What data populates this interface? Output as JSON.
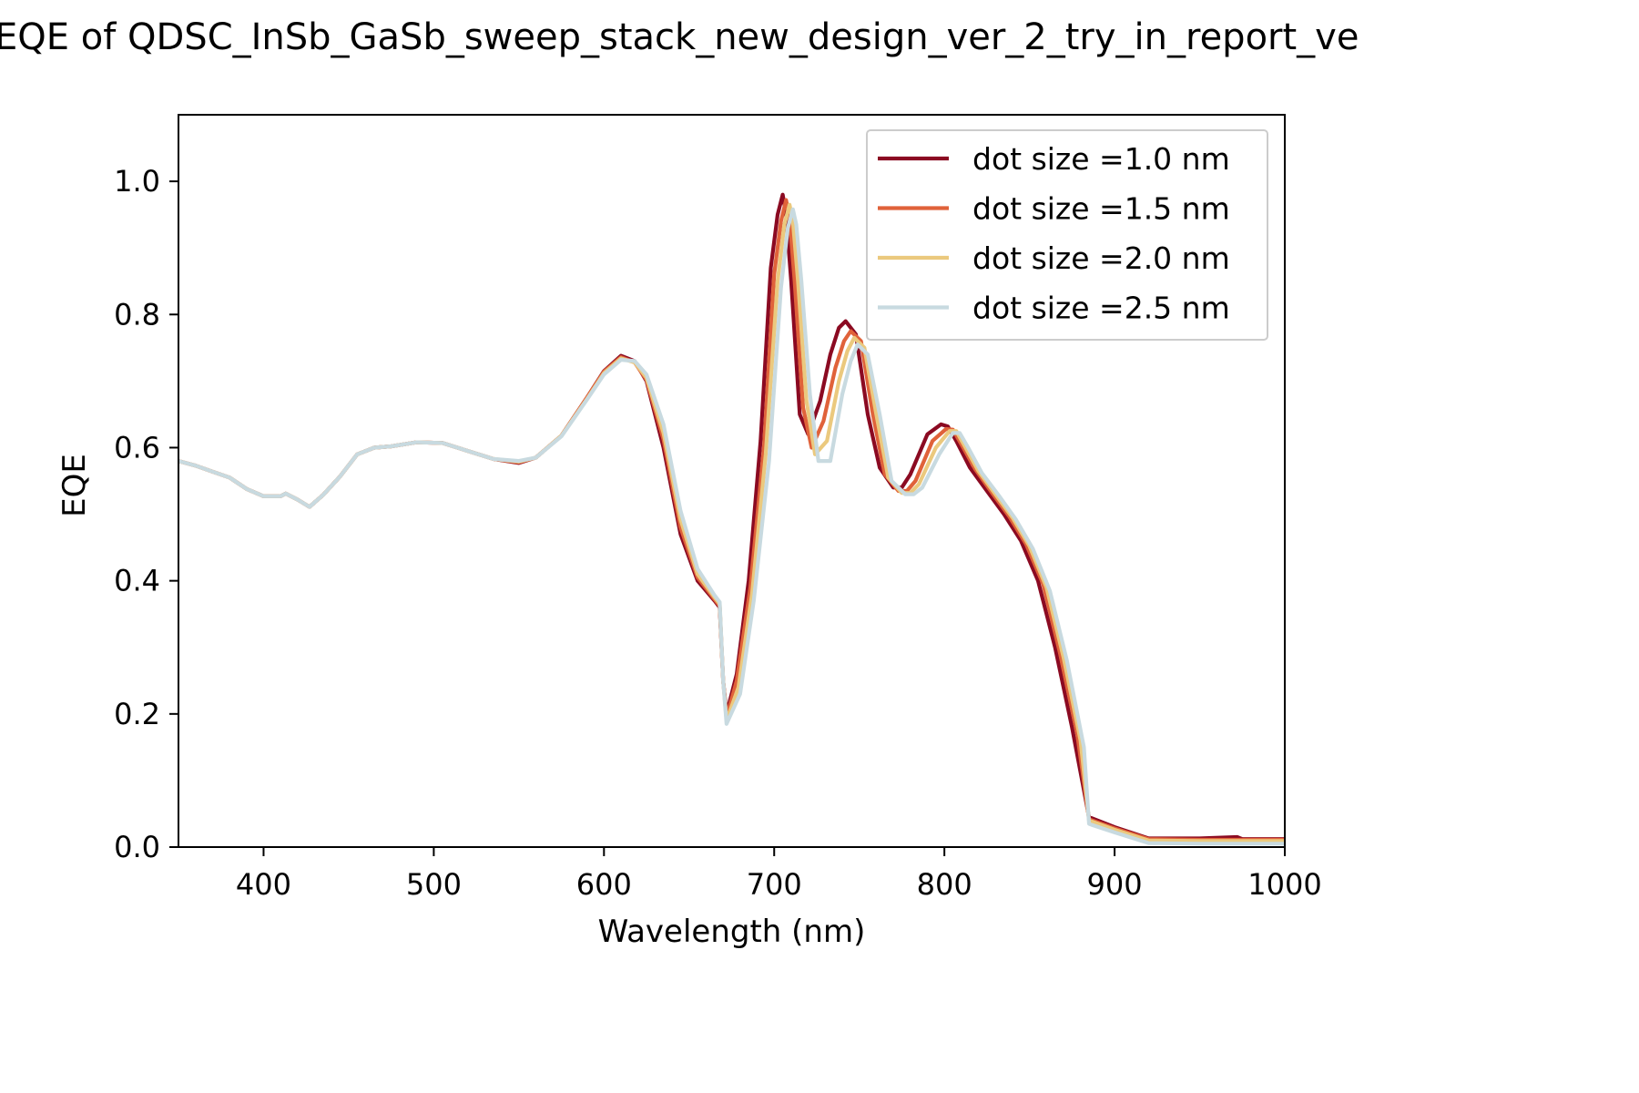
{
  "chart_data": {
    "type": "line",
    "title": "EQE of  QDSC_InSb_GaSb_sweep_stack_new_design_ver_2_try_in_report_ve",
    "xlabel": "Wavelength (nm)",
    "ylabel": "EQE",
    "xlim": [
      350,
      1000
    ],
    "ylim": [
      0,
      1.1
    ],
    "xticks": [
      400,
      500,
      600,
      700,
      800,
      900,
      1000
    ],
    "yticks": [
      0.0,
      0.2,
      0.4,
      0.6,
      0.8,
      1.0
    ],
    "xtick_labels": [
      "400",
      "500",
      "600",
      "700",
      "800",
      "900",
      "1000"
    ],
    "ytick_labels": [
      "0.0",
      "0.2",
      "0.4",
      "0.6",
      "0.8",
      "1.0"
    ],
    "grid": false,
    "legend_position": "top-right",
    "series": [
      {
        "name": "dot size =1.0 nm",
        "color": "#8b0a22",
        "x": [
          350,
          360,
          370,
          380,
          390,
          400,
          410,
          413,
          420,
          427,
          435,
          445,
          455,
          465,
          475,
          490,
          505,
          520,
          535,
          550,
          560,
          575,
          590,
          600,
          610,
          618,
          625,
          635,
          645,
          655,
          665,
          668,
          670,
          672,
          678,
          685,
          692,
          698,
          702,
          705,
          707,
          710,
          715,
          720,
          727,
          733,
          738,
          742,
          748,
          755,
          762,
          770,
          775,
          780,
          790,
          798,
          802,
          807,
          815,
          825,
          835,
          845,
          855,
          865,
          875,
          885,
          887,
          900,
          920,
          950,
          972,
          975,
          1000
        ],
        "y": [
          0.58,
          0.573,
          0.564,
          0.555,
          0.538,
          0.527,
          0.527,
          0.531,
          0.522,
          0.511,
          0.529,
          0.557,
          0.59,
          0.6,
          0.602,
          0.608,
          0.607,
          0.595,
          0.583,
          0.577,
          0.585,
          0.618,
          0.675,
          0.715,
          0.738,
          0.73,
          0.7,
          0.6,
          0.47,
          0.4,
          0.37,
          0.36,
          0.25,
          0.2,
          0.26,
          0.4,
          0.61,
          0.87,
          0.95,
          0.98,
          0.95,
          0.85,
          0.65,
          0.62,
          0.67,
          0.74,
          0.78,
          0.79,
          0.77,
          0.65,
          0.57,
          0.54,
          0.54,
          0.56,
          0.62,
          0.635,
          0.632,
          0.61,
          0.57,
          0.535,
          0.5,
          0.46,
          0.4,
          0.3,
          0.18,
          0.045,
          0.043,
          0.03,
          0.013,
          0.013,
          0.015,
          0.012,
          0.012
        ]
      },
      {
        "name": "dot size =1.5 nm",
        "color": "#e0623a",
        "x": [
          350,
          360,
          370,
          380,
          390,
          400,
          410,
          413,
          420,
          427,
          435,
          445,
          455,
          465,
          475,
          490,
          505,
          520,
          535,
          550,
          560,
          575,
          590,
          600,
          610,
          618,
          625,
          635,
          645,
          655,
          665,
          668,
          670,
          672,
          678,
          686,
          694,
          700,
          704,
          707,
          709,
          712,
          717,
          722,
          729,
          736,
          741,
          745,
          751,
          758,
          765,
          773,
          778,
          783,
          793,
          801,
          805,
          810,
          818,
          828,
          838,
          848,
          858,
          868,
          878,
          885,
          887,
          900,
          920,
          950,
          1000
        ],
        "y": [
          0.58,
          0.573,
          0.564,
          0.555,
          0.538,
          0.527,
          0.527,
          0.531,
          0.522,
          0.511,
          0.529,
          0.557,
          0.59,
          0.6,
          0.602,
          0.608,
          0.607,
          0.595,
          0.583,
          0.578,
          0.585,
          0.618,
          0.675,
          0.714,
          0.736,
          0.728,
          0.702,
          0.612,
          0.48,
          0.405,
          0.372,
          0.362,
          0.25,
          0.195,
          0.25,
          0.39,
          0.6,
          0.86,
          0.94,
          0.972,
          0.945,
          0.85,
          0.66,
          0.6,
          0.64,
          0.72,
          0.76,
          0.775,
          0.76,
          0.65,
          0.56,
          0.535,
          0.535,
          0.55,
          0.61,
          0.628,
          0.627,
          0.605,
          0.568,
          0.532,
          0.497,
          0.455,
          0.395,
          0.29,
          0.17,
          0.042,
          0.04,
          0.028,
          0.012,
          0.011,
          0.011
        ]
      },
      {
        "name": "dot size =2.0 nm",
        "color": "#ebc97e",
        "x": [
          350,
          360,
          370,
          380,
          390,
          400,
          410,
          413,
          420,
          427,
          435,
          445,
          455,
          465,
          475,
          490,
          505,
          520,
          535,
          550,
          560,
          575,
          590,
          600,
          610,
          618,
          625,
          635,
          645,
          655,
          665,
          668,
          670,
          672,
          679,
          687,
          695,
          702,
          706,
          709,
          711,
          714,
          719,
          724,
          731,
          738,
          743,
          747,
          753,
          760,
          767,
          775,
          780,
          785,
          795,
          803,
          807,
          812,
          820,
          830,
          840,
          850,
          860,
          870,
          880,
          885,
          887,
          900,
          920,
          950,
          1000
        ],
        "y": [
          0.58,
          0.573,
          0.564,
          0.555,
          0.538,
          0.527,
          0.527,
          0.531,
          0.522,
          0.511,
          0.529,
          0.557,
          0.59,
          0.6,
          0.602,
          0.608,
          0.607,
          0.595,
          0.583,
          0.579,
          0.585,
          0.618,
          0.673,
          0.712,
          0.734,
          0.728,
          0.705,
          0.622,
          0.492,
          0.41,
          0.375,
          0.365,
          0.25,
          0.19,
          0.24,
          0.38,
          0.59,
          0.85,
          0.935,
          0.965,
          0.94,
          0.85,
          0.67,
          0.59,
          0.61,
          0.7,
          0.745,
          0.765,
          0.75,
          0.65,
          0.555,
          0.532,
          0.532,
          0.545,
          0.6,
          0.625,
          0.625,
          0.602,
          0.565,
          0.53,
          0.495,
          0.452,
          0.39,
          0.285,
          0.16,
          0.04,
          0.038,
          0.026,
          0.01,
          0.009,
          0.009
        ]
      },
      {
        "name": "dot size =2.5 nm",
        "color": "#c8dae0",
        "x": [
          350,
          360,
          370,
          380,
          390,
          400,
          410,
          413,
          420,
          427,
          435,
          445,
          455,
          465,
          475,
          490,
          505,
          520,
          535,
          550,
          560,
          575,
          590,
          600,
          610,
          618,
          625,
          635,
          645,
          655,
          665,
          668,
          670,
          672,
          680,
          688,
          697,
          704,
          708,
          711,
          713,
          716,
          721,
          726,
          733,
          740,
          745,
          749,
          755,
          762,
          769,
          777,
          782,
          787,
          797,
          805,
          809,
          814,
          822,
          832,
          842,
          852,
          862,
          872,
          882,
          885,
          887,
          900,
          920,
          950,
          1000
        ],
        "y": [
          0.58,
          0.573,
          0.564,
          0.555,
          0.538,
          0.527,
          0.527,
          0.531,
          0.522,
          0.511,
          0.529,
          0.557,
          0.59,
          0.6,
          0.602,
          0.608,
          0.607,
          0.595,
          0.583,
          0.58,
          0.585,
          0.617,
          0.672,
          0.71,
          0.732,
          0.73,
          0.71,
          0.635,
          0.505,
          0.418,
          0.378,
          0.368,
          0.25,
          0.185,
          0.23,
          0.37,
          0.58,
          0.84,
          0.93,
          0.958,
          0.935,
          0.85,
          0.68,
          0.58,
          0.58,
          0.68,
          0.73,
          0.755,
          0.74,
          0.65,
          0.55,
          0.53,
          0.53,
          0.54,
          0.59,
          0.622,
          0.622,
          0.6,
          0.562,
          0.528,
          0.492,
          0.448,
          0.385,
          0.28,
          0.15,
          0.035,
          0.033,
          0.022,
          0.006,
          0.005,
          0.005
        ]
      }
    ]
  }
}
